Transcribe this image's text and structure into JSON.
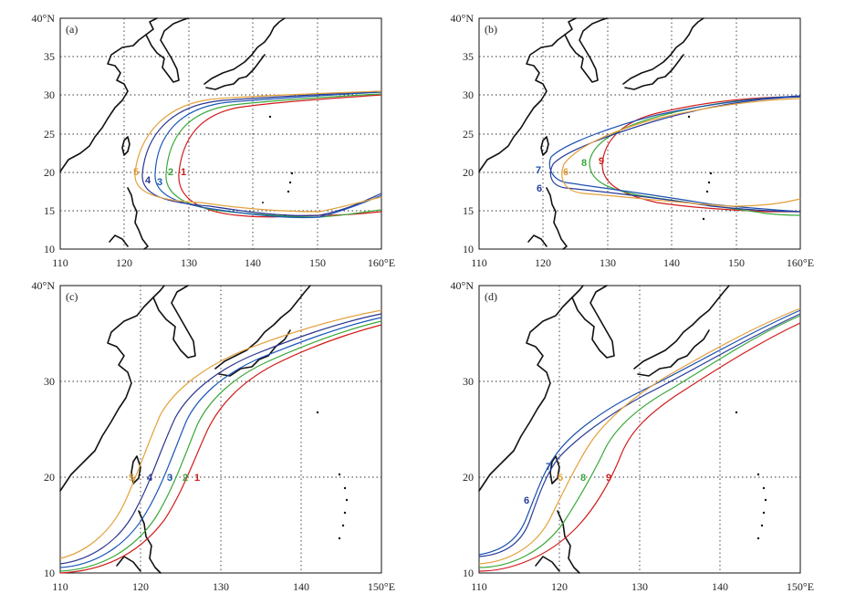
{
  "colors": {
    "1": "#d11b1b",
    "2": "#3aa83a",
    "3": "#1a56b8",
    "4": "#2a3590",
    "5": "#e3a03a",
    "6": "#283c9a",
    "7": "#1a4fb0",
    "8": "#3aa83a",
    "9": "#d11b1b",
    "gray": "#e3a03a"
  },
  "panels": [
    {
      "id": "a",
      "label": "(a)",
      "lon_ticks": [
        "110",
        "120",
        "130",
        "140",
        "150",
        "160°E"
      ],
      "lat_ticks": [
        "40°N",
        "35",
        "30",
        "25",
        "20",
        "15",
        "10"
      ],
      "track_labels": [
        "5",
        "4",
        "3",
        "2",
        "1"
      ]
    },
    {
      "id": "b",
      "label": "(b)",
      "lon_ticks": [
        "110",
        "120",
        "130",
        "140",
        "150",
        "160°E"
      ],
      "lat_ticks": [
        "40°N",
        "35",
        "30",
        "25",
        "20",
        "15",
        "10"
      ],
      "track_labels": [
        "7",
        "6",
        "6",
        "8",
        "9"
      ]
    },
    {
      "id": "c",
      "label": "(c)",
      "lon_ticks": [
        "110",
        "120",
        "130",
        "140",
        "150°E"
      ],
      "lat_ticks": [
        "40°N",
        "30",
        "20",
        "10"
      ],
      "track_labels": [
        "5",
        "4",
        "3",
        "2",
        "1"
      ]
    },
    {
      "id": "d",
      "label": "(d)",
      "lon_ticks": [
        "110",
        "120",
        "130",
        "140",
        "150°E"
      ],
      "lat_ticks": [
        "40°N",
        "30",
        "20",
        "10"
      ],
      "track_labels": [
        "7",
        "6",
        "5",
        "8",
        "9"
      ]
    }
  ]
}
